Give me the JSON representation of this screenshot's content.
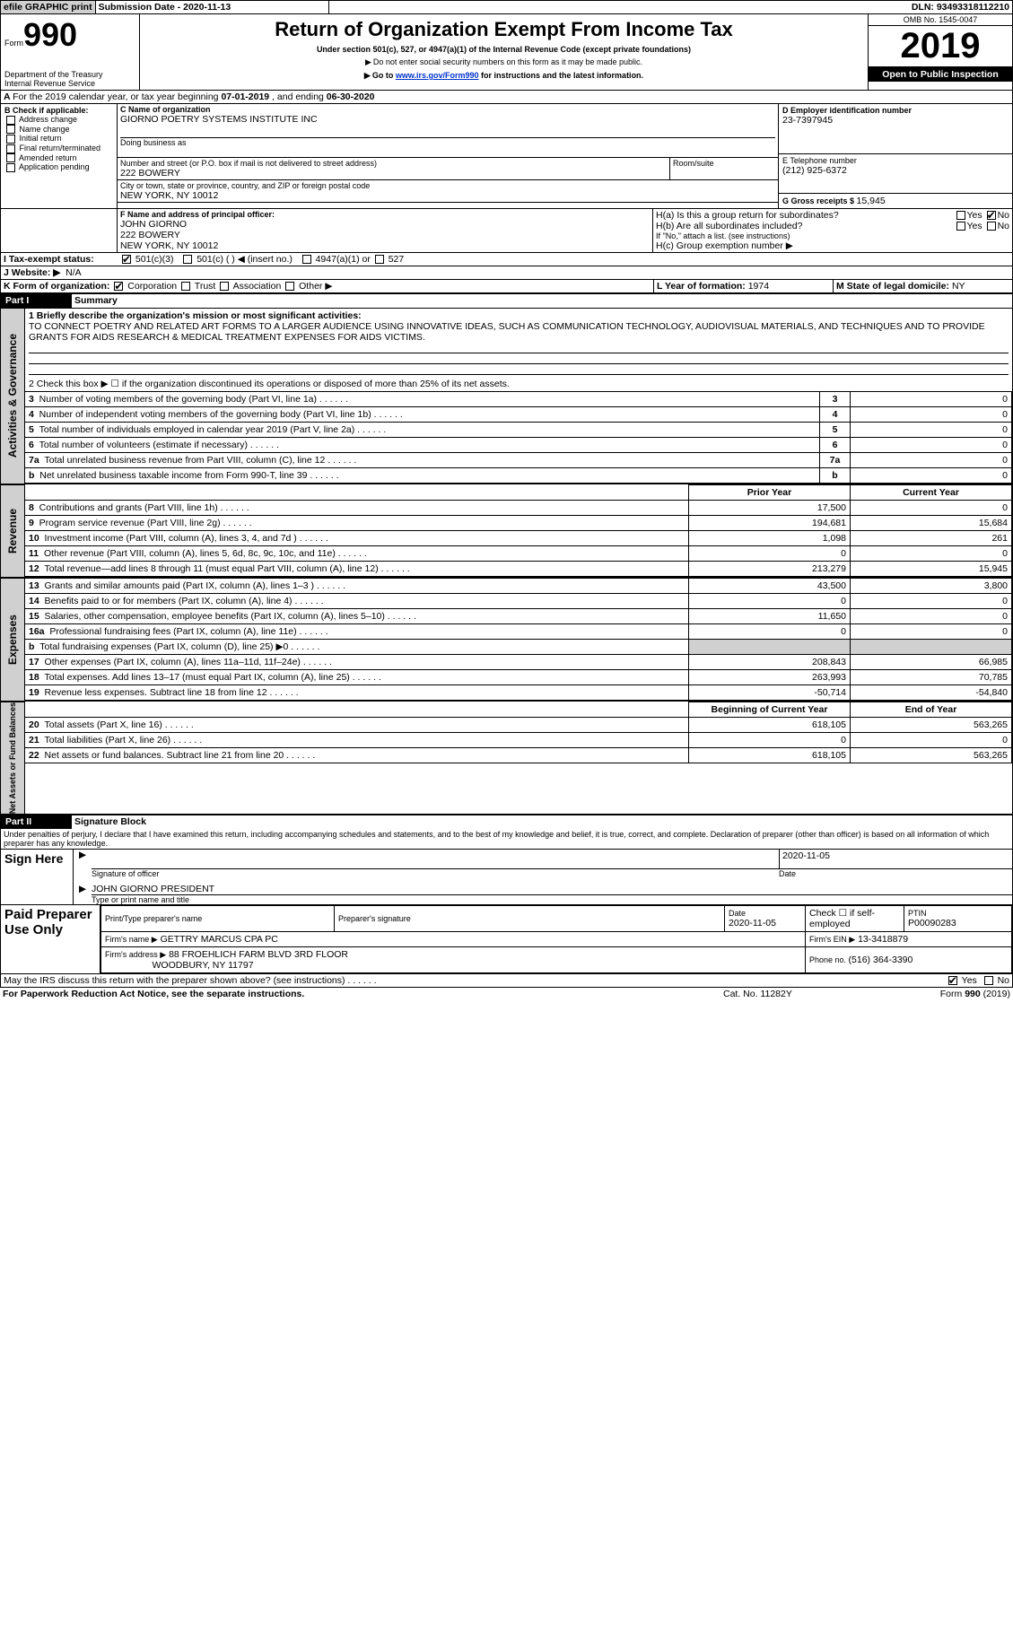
{
  "topbar": {
    "efile": "efile GRAPHIC print",
    "submission": "Submission Date - 2020-11-13",
    "dln": "DLN: 93493318112210"
  },
  "header": {
    "form": "Form",
    "num": "990",
    "dept1": "Department of the Treasury",
    "dept2": "Internal Revenue Service",
    "title": "Return of Organization Exempt From Income Tax",
    "sub1": "Under section 501(c), 527, or 4947(a)(1) of the Internal Revenue Code (except private foundations)",
    "sub2": "Do not enter social security numbers on this form as it may be made public.",
    "sub3_a": "Go to ",
    "sub3_link": "www.irs.gov/Form990",
    "sub3_b": " for instructions and the latest information.",
    "omb": "OMB No. 1545-0047",
    "year": "2019",
    "open": "Open to Public Inspection"
  },
  "A_line": {
    "text_a": "For the 2019 calendar year, or tax year beginning ",
    "begin": "07-01-2019",
    "mid": " , and ending ",
    "end": "06-30-2020"
  },
  "B": {
    "label": "B Check if applicable:",
    "opts": [
      "Address change",
      "Name change",
      "Initial return",
      "Final return/terminated",
      "Amended return",
      "Application pending"
    ]
  },
  "C": {
    "name_lbl": "C Name of organization",
    "name": "GIORNO POETRY SYSTEMS INSTITUTE INC",
    "dba_lbl": "Doing business as",
    "addr_lbl": "Number and street (or P.O. box if mail is not delivered to street address)",
    "room_lbl": "Room/suite",
    "addr": "222 BOWERY",
    "city_lbl": "City or town, state or province, country, and ZIP or foreign postal code",
    "city": "NEW YORK, NY  10012"
  },
  "D": {
    "lbl": "D Employer identification number",
    "val": "23-7397945"
  },
  "E": {
    "lbl": "E Telephone number",
    "val": "(212) 925-6372"
  },
  "G": {
    "lbl": "G Gross receipts $ ",
    "val": "15,945"
  },
  "F": {
    "lbl": "F  Name and address of principal officer:",
    "l1": "JOHN GIORNO",
    "l2": "222 BOWERY",
    "l3": "NEW YORK, NY  10012"
  },
  "H": {
    "a": "H(a)  Is this a group return for subordinates?",
    "b": "H(b)  Are all subordinates included?",
    "b_note": "If \"No,\" attach a list. (see instructions)",
    "c": "H(c)  Group exemption number ▶",
    "yes": "Yes",
    "no": "No"
  },
  "I": {
    "lbl": "I   Tax-exempt status:",
    "o1": "501(c)(3)",
    "o2": "501(c) (  ) ◀ (insert no.)",
    "o3": "4947(a)(1) or",
    "o4": "527"
  },
  "J": {
    "lbl": "J   Website: ▶",
    "val": "N/A"
  },
  "K": {
    "lbl": "K Form of organization:",
    "o1": "Corporation",
    "o2": "Trust",
    "o3": "Association",
    "o4": "Other ▶"
  },
  "L": {
    "lbl": "L Year of formation: ",
    "val": "1974"
  },
  "M": {
    "lbl": "M State of legal domicile: ",
    "val": "NY"
  },
  "part1": {
    "bar": "Part I",
    "title": "Summary"
  },
  "p1": {
    "q1_lbl": "1  Briefly describe the organization's mission or most significant activities:",
    "q1_val": "TO CONNECT POETRY AND RELATED ART FORMS TO A LARGER AUDIENCE USING INNOVATIVE IDEAS, SUCH AS COMMUNICATION TECHNOLOGY, AUDIOVISUAL MATERIALS, AND TECHNIQUES AND TO PROVIDE GRANTS FOR AIDS RESEARCH & MEDICAL TREATMENT EXPENSES FOR AIDS VICTIMS.",
    "q2": "2   Check this box ▶ ☐  if the organization discontinued its operations or disposed of more than 25% of its net assets.",
    "gov_rows": [
      {
        "n": "3",
        "t": "Number of voting members of the governing body (Part VI, line 1a)",
        "v": "0"
      },
      {
        "n": "4",
        "t": "Number of independent voting members of the governing body (Part VI, line 1b)",
        "v": "0"
      },
      {
        "n": "5",
        "t": "Total number of individuals employed in calendar year 2019 (Part V, line 2a)",
        "v": "0"
      },
      {
        "n": "6",
        "t": "Total number of volunteers (estimate if necessary)",
        "v": "0"
      },
      {
        "n": "7a",
        "t": "Total unrelated business revenue from Part VIII, column (C), line 12",
        "v": "0"
      },
      {
        "n": "b",
        "t": "Net unrelated business taxable income from Form 990-T, line 39",
        "v": "0"
      }
    ],
    "col_prior": "Prior Year",
    "col_curr": "Current Year",
    "rev": [
      {
        "n": "8",
        "t": "Contributions and grants (Part VIII, line 1h)",
        "p": "17,500",
        "c": "0"
      },
      {
        "n": "9",
        "t": "Program service revenue (Part VIII, line 2g)",
        "p": "194,681",
        "c": "15,684"
      },
      {
        "n": "10",
        "t": "Investment income (Part VIII, column (A), lines 3, 4, and 7d )",
        "p": "1,098",
        "c": "261"
      },
      {
        "n": "11",
        "t": "Other revenue (Part VIII, column (A), lines 5, 6d, 8c, 9c, 10c, and 11e)",
        "p": "0",
        "c": "0"
      },
      {
        "n": "12",
        "t": "Total revenue—add lines 8 through 11 (must equal Part VIII, column (A), line 12)",
        "p": "213,279",
        "c": "15,945"
      }
    ],
    "exp": [
      {
        "n": "13",
        "t": "Grants and similar amounts paid (Part IX, column (A), lines 1–3 )",
        "p": "43,500",
        "c": "3,800"
      },
      {
        "n": "14",
        "t": "Benefits paid to or for members (Part IX, column (A), line 4)",
        "p": "0",
        "c": "0"
      },
      {
        "n": "15",
        "t": "Salaries, other compensation, employee benefits (Part IX, column (A), lines 5–10)",
        "p": "11,650",
        "c": "0"
      },
      {
        "n": "16a",
        "t": "Professional fundraising fees (Part IX, column (A), line 11e)",
        "p": "0",
        "c": "0"
      },
      {
        "n": "b",
        "t": "Total fundraising expenses (Part IX, column (D), line 25) ▶0",
        "p": "",
        "c": ""
      },
      {
        "n": "17",
        "t": "Other expenses (Part IX, column (A), lines 11a–11d, 11f–24e)",
        "p": "208,843",
        "c": "66,985"
      },
      {
        "n": "18",
        "t": "Total expenses. Add lines 13–17 (must equal Part IX, column (A), line 25)",
        "p": "263,993",
        "c": "70,785"
      },
      {
        "n": "19",
        "t": "Revenue less expenses. Subtract line 18 from line 12",
        "p": "-50,714",
        "c": "-54,840"
      }
    ],
    "col_beg": "Beginning of Current Year",
    "col_end": "End of Year",
    "net": [
      {
        "n": "20",
        "t": "Total assets (Part X, line 16)",
        "p": "618,105",
        "c": "563,265"
      },
      {
        "n": "21",
        "t": "Total liabilities (Part X, line 26)",
        "p": "0",
        "c": "0"
      },
      {
        "n": "22",
        "t": "Net assets or fund balances. Subtract line 21 from line 20",
        "p": "618,105",
        "c": "563,265"
      }
    ],
    "side_gov": "Activities & Governance",
    "side_rev": "Revenue",
    "side_exp": "Expenses",
    "side_net": "Net Assets or Fund Balances"
  },
  "part2": {
    "bar": "Part II",
    "title": "Signature Block",
    "decl": "Under penalties of perjury, I declare that I have examined this return, including accompanying schedules and statements, and to the best of my knowledge and belief, it is true, correct, and complete. Declaration of preparer (other than officer) is based on all information of which preparer has any knowledge."
  },
  "sign": {
    "side": "Sign Here",
    "sig_lbl": "Signature of officer",
    "date_lbl": "Date",
    "date": "2020-11-05",
    "name": "JOHN GIORNO  PRESIDENT",
    "name_lbl": "Type or print name and title"
  },
  "prep": {
    "side": "Paid Preparer Use Only",
    "h1": "Print/Type preparer's name",
    "h2": "Preparer's signature",
    "h3": "Date",
    "h3v": "2020-11-05",
    "h4": "Check ☐ if self-employed",
    "h5": "PTIN",
    "ptin": "P00090283",
    "firm_lbl": "Firm's name   ▶",
    "firm": "GETTRY MARCUS CPA PC",
    "ein_lbl": "Firm's EIN ▶",
    "ein": "13-3418879",
    "addr_lbl": "Firm's address ▶",
    "addr1": "88 FROEHLICH FARM BLVD 3RD FLOOR",
    "addr2": "WOODBURY, NY  11797",
    "phone_lbl": "Phone no. ",
    "phone": "(516) 364-3390"
  },
  "footer": {
    "discuss": "May the IRS discuss this return with the preparer shown above? (see instructions)",
    "yes": "Yes",
    "no": "No",
    "pra": "For Paperwork Reduction Act Notice, see the separate instructions.",
    "cat": "Cat. No. 11282Y",
    "form": "Form 990 (2019)"
  }
}
